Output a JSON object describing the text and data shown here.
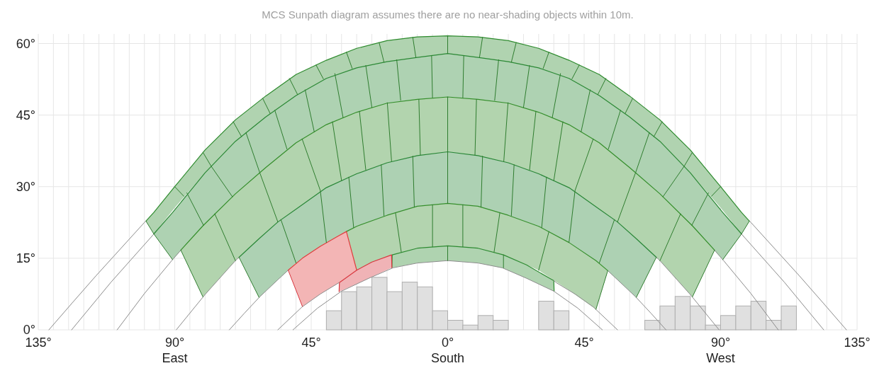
{
  "chart_data": {
    "type": "line",
    "title": "MCS Sunpath diagram assumes there are no near-shading objects within 10m.",
    "xlim": [
      -135,
      135
    ],
    "ylim": [
      0,
      62
    ],
    "xticks": [
      {
        "value": -135,
        "label": "135°"
      },
      {
        "value": -130,
        "label": null
      },
      {
        "value": -125,
        "label": null
      },
      {
        "value": -120,
        "label": null
      },
      {
        "value": -115,
        "label": null
      },
      {
        "value": -110,
        "label": null
      },
      {
        "value": -105,
        "label": null
      },
      {
        "value": -100,
        "label": null
      },
      {
        "value": -95,
        "label": null
      },
      {
        "value": -90,
        "label": "90°\nEast"
      },
      {
        "value": -85,
        "label": null
      },
      {
        "value": -80,
        "label": null
      },
      {
        "value": -75,
        "label": null
      },
      {
        "value": -70,
        "label": null
      },
      {
        "value": -65,
        "label": null
      },
      {
        "value": -60,
        "label": null
      },
      {
        "value": -55,
        "label": null
      },
      {
        "value": -50,
        "label": null
      },
      {
        "value": -45,
        "label": "45°"
      },
      {
        "value": -40,
        "label": null
      },
      {
        "value": -35,
        "label": null
      },
      {
        "value": -30,
        "label": null
      },
      {
        "value": -25,
        "label": null
      },
      {
        "value": -20,
        "label": null
      },
      {
        "value": -15,
        "label": null
      },
      {
        "value": -10,
        "label": null
      },
      {
        "value": -5,
        "label": null
      },
      {
        "value": 0,
        "label": "0°\nSouth"
      },
      {
        "value": 5,
        "label": null
      },
      {
        "value": 10,
        "label": null
      },
      {
        "value": 15,
        "label": null
      },
      {
        "value": 20,
        "label": null
      },
      {
        "value": 25,
        "label": null
      },
      {
        "value": 30,
        "label": null
      },
      {
        "value": 35,
        "label": null
      },
      {
        "value": 40,
        "label": null
      },
      {
        "value": 45,
        "label": "45°"
      },
      {
        "value": 50,
        "label": null
      },
      {
        "value": 55,
        "label": null
      },
      {
        "value": 60,
        "label": null
      },
      {
        "value": 65,
        "label": null
      },
      {
        "value": 70,
        "label": null
      },
      {
        "value": 75,
        "label": null
      },
      {
        "value": 80,
        "label": null
      },
      {
        "value": 85,
        "label": null
      },
      {
        "value": 90,
        "label": "90°\nWest"
      },
      {
        "value": 95,
        "label": null
      },
      {
        "value": 100,
        "label": null
      },
      {
        "value": 105,
        "label": null
      },
      {
        "value": 110,
        "label": null
      },
      {
        "value": 115,
        "label": null
      },
      {
        "value": 120,
        "label": null
      },
      {
        "value": 125,
        "label": null
      },
      {
        "value": 130,
        "label": null
      },
      {
        "value": 135,
        "label": "135°"
      }
    ],
    "yticks": [
      {
        "value": 0,
        "label": "0°"
      },
      {
        "value": 15,
        "label": "15°"
      },
      {
        "value": 30,
        "label": "30°"
      },
      {
        "value": 45,
        "label": "45°"
      },
      {
        "value": 60,
        "label": "60°"
      }
    ],
    "grid": true,
    "series": [
      {
        "type": "histogram",
        "color": "#e0e0e0",
        "bins": [
          -40,
          -35,
          -30,
          -25,
          -20,
          -15,
          -10,
          -5,
          0,
          5,
          10,
          15,
          20,
          25,
          30,
          35,
          40,
          45,
          50,
          55,
          60,
          65,
          70,
          75,
          80,
          85,
          90,
          95,
          100,
          105,
          110,
          115
        ],
        "values": [
          4,
          8,
          9,
          11,
          8,
          10,
          9,
          4,
          2,
          1,
          3,
          2,
          0,
          0,
          6,
          4,
          0,
          0,
          0,
          0,
          0,
          2,
          5,
          7,
          5,
          1,
          3,
          5,
          6,
          2,
          5
        ]
      },
      {
        "color": "#2e8b2e",
        "x": [
          -99.5,
          -96.9,
          -90,
          -80,
          -70,
          -60,
          -50,
          -40,
          -30,
          -20,
          -10,
          0,
          10,
          20,
          30,
          40,
          50,
          60,
          70,
          80,
          90,
          96.9,
          99.5
        ],
        "values": [
          22.8,
          24.6,
          30,
          37.7,
          44,
          49,
          53.5,
          56.5,
          59,
          60.6,
          61.4,
          61.6,
          61.4,
          60.6,
          59,
          56.5,
          53.5,
          49,
          44,
          37.7,
          30,
          24.6,
          22.8
        ],
        "upper": [
          22.8,
          24.6,
          30,
          37.7,
          44,
          49,
          53.5,
          56.5,
          59,
          60.6,
          61.4,
          61.6,
          61.4,
          60.6,
          59,
          56.5,
          53.5,
          49,
          44,
          37.7,
          30,
          24.6,
          22.8
        ],
        "lower": [
          22.8,
          20.1,
          25.6,
          32.9,
          39.5,
          44.6,
          49.1,
          52.7,
          54.9,
          56.2,
          57.1,
          57.9,
          57.1,
          56.2,
          54.9,
          52.7,
          49.1,
          44.6,
          39.5,
          32.9,
          25.6,
          20.1,
          22.8
        ]
      },
      {
        "color": "#2a8834",
        "x": [
          -96.9,
          -90.7,
          -80,
          -70,
          -60,
          -50,
          -40,
          -30,
          -20,
          -10,
          0,
          10,
          20,
          30,
          40,
          50,
          60,
          70,
          80,
          90.7,
          96.9
        ],
        "values": [
          20.1,
          24.6,
          32.9,
          39.5,
          44.6,
          49.1,
          52.7,
          54.9,
          56.2,
          57.1,
          57.9,
          57.1,
          56.2,
          54.9,
          52.7,
          49.1,
          44.6,
          39.5,
          32.9,
          24.6,
          20.1
        ],
        "upper": [
          20.1,
          24.6,
          32.9,
          39.5,
          44.6,
          49.1,
          52.7,
          54.9,
          56.2,
          57.1,
          57.9,
          57.1,
          56.2,
          54.9,
          52.7,
          49.1,
          44.6,
          39.5,
          32.9,
          24.6,
          20.1
        ],
        "lower": [
          20.1,
          14.7,
          22.2,
          28.5,
          34,
          39.2,
          43,
          45.6,
          47.5,
          48.3,
          48.8,
          48.3,
          47.5,
          45.6,
          43,
          39.2,
          34,
          28.5,
          22.2,
          14.7,
          20.1
        ]
      },
      {
        "color": "#348e2a",
        "x": [
          -88,
          -80.7,
          -70,
          -60,
          -50,
          -40,
          -30,
          -20,
          -10,
          0,
          10,
          20,
          30,
          40,
          50,
          60,
          70,
          80.7,
          88
        ],
        "values": [
          16.7,
          21.8,
          28.5,
          34,
          39.2,
          43,
          45.6,
          47.5,
          48.3,
          48.8,
          48.3,
          47.5,
          45.6,
          43,
          39.2,
          34,
          28.5,
          21.8,
          16.7
        ],
        "upper": [
          16.7,
          21.8,
          28.5,
          34,
          39.2,
          43,
          45.6,
          47.5,
          48.3,
          48.8,
          48.3,
          47.5,
          45.6,
          43,
          39.2,
          34,
          28.5,
          21.8,
          16.7
        ],
        "lower": [
          16.7,
          6.9,
          14.5,
          20.4,
          25.3,
          29.8,
          32.7,
          35,
          36.5,
          37.3,
          36.5,
          35,
          32.7,
          29.8,
          25.3,
          20.4,
          14.5,
          6.9,
          16.7
        ]
      },
      {
        "color": "#288636",
        "x": [
          -68.8,
          -62.2,
          -56,
          -50,
          -40,
          -30,
          -20,
          -10,
          0,
          10,
          20,
          30,
          40,
          50,
          56,
          62.2,
          68.8
        ],
        "values": [
          15.2,
          19.1,
          22.6,
          25.3,
          29.8,
          32.7,
          35,
          36.5,
          37.3,
          36.5,
          35,
          32.7,
          29.8,
          25.3,
          22.6,
          19.1,
          15.2
        ],
        "upper": [
          15.2,
          19.1,
          22.6,
          25.3,
          29.8,
          32.7,
          35,
          36.5,
          37.3,
          36.5,
          35,
          32.7,
          29.8,
          25.3,
          22.6,
          19.1,
          15.2
        ],
        "lower": [
          15.2,
          6.8,
          10.5,
          14,
          18.3,
          21.7,
          24,
          25.9,
          26.5,
          25.9,
          24,
          21.7,
          18.3,
          14,
          10.5,
          6.8,
          15.2
        ]
      },
      {
        "color": "#368f2c",
        "x": [
          -33.4,
          -30,
          -20,
          -10,
          0,
          10,
          20,
          30,
          40,
          48.9,
          52.8
        ],
        "values": [
          20.6,
          21.7,
          24,
          25.9,
          26.5,
          25.9,
          24,
          21.7,
          18.3,
          14.5,
          12.4
        ],
        "upper": [
          20.6,
          21.7,
          24,
          25.9,
          26.5,
          25.9,
          24,
          21.7,
          18.3,
          14.5,
          12.4
        ],
        "lower": [
          20.6,
          12.5,
          15.3,
          17.1,
          17.6,
          17.1,
          15.3,
          12.5,
          8.3,
          4.3,
          12.4
        ]
      },
      {
        "color": "#e03c3c",
        "x": [
          -52.6,
          -47.9,
          -42,
          -36,
          -33.4,
          -30
        ],
        "values": [
          12.5,
          15,
          17.5,
          19.7,
          20.6,
          12.5
        ],
        "upper": [
          12.5,
          15,
          17.5,
          19.7,
          20.6,
          12.5
        ],
        "lower": [
          12.5,
          4.9,
          7.5,
          9.8,
          11,
          12.5
        ]
      },
      {
        "color": "#2c8a30",
        "x": [
          -18.4,
          -18.3,
          -10,
          0,
          10,
          18.4,
          26,
          35,
          35.1
        ],
        "values": [
          13,
          15.7,
          17.1,
          17.6,
          17.1,
          15.7,
          13.6,
          10.3,
          8.1
        ],
        "upper": [
          13,
          15.7,
          17.1,
          17.6,
          17.1,
          15.7,
          13.6,
          10.3,
          8.1
        ],
        "lower": [
          13,
          13,
          14,
          14.5,
          14,
          12.9,
          10.8,
          8.1,
          8.1
        ]
      },
      {
        "color": "#d8363e",
        "x": [
          -35.8,
          -35.7,
          -30,
          -25,
          -18.5,
          -18.4
        ],
        "values": [
          8,
          9.9,
          12.5,
          14.2,
          15.7,
          13
        ],
        "upper": [
          8,
          9.9,
          12.5,
          14.2,
          15.7,
          13
        ],
        "lower": [
          8,
          8,
          9.6,
          11.1,
          13,
          13
        ]
      },
      {
        "color": "#8c8c8c",
        "x": [
          -131.5,
          -124,
          -116,
          -110,
          -105,
          -100,
          -99.5
        ],
        "values": [
          0,
          5.5,
          11.3,
          15.5,
          19,
          22.5,
          22.8
        ]
      },
      {
        "color": "#8c8c8c",
        "x": [
          99.5,
          100,
          105,
          110,
          116,
          124,
          131.5
        ],
        "values": [
          22.8,
          22.5,
          19,
          15.5,
          11.3,
          5.5,
          0
        ]
      },
      {
        "color": "#8c8c8c",
        "x": [
          -124,
          -111,
          -97,
          -96.9
        ],
        "values": [
          0,
          10,
          20,
          20.1
        ]
      },
      {
        "color": "#8c8c8c",
        "x": [
          96.9,
          97,
          111,
          124
        ],
        "values": [
          20.1,
          20,
          10,
          0
        ]
      },
      {
        "color": "#8c8c8c",
        "x": [
          -109,
          -100,
          -91,
          -88
        ],
        "values": [
          0,
          7.6,
          14.5,
          16.7
        ]
      },
      {
        "color": "#8c8c8c",
        "x": [
          88,
          91,
          100,
          109
        ],
        "values": [
          16.7,
          14.5,
          7.6,
          0
        ]
      },
      {
        "color": "#8c8c8c",
        "x": [
          -89.5,
          -80,
          -70,
          -68.8
        ],
        "values": [
          0,
          7.4,
          14.5,
          15.2
        ]
      },
      {
        "color": "#8c8c8c",
        "x": [
          68.8,
          70,
          80,
          89.5
        ],
        "values": [
          15.2,
          14.5,
          7.4,
          0
        ]
      },
      {
        "color": "#8c8c8c",
        "x": [
          -72,
          -67,
          -62,
          -56,
          -52.6
        ],
        "values": [
          0,
          3.5,
          6.9,
          10.5,
          12.5
        ]
      },
      {
        "color": "#8c8c8c",
        "x": [
          52.8,
          56,
          62,
          67,
          72
        ],
        "values": [
          12.4,
          10.5,
          6.9,
          3.5,
          0
        ]
      },
      {
        "color": "#8c8c8c",
        "x": [
          -56,
          -48,
          -42,
          -35.8
        ],
        "values": [
          0,
          4.8,
          7.5,
          9.9
        ]
      },
      {
        "color": "#8c8c8c",
        "x": [
          35,
          36,
          42,
          48,
          56
        ],
        "values": [
          10.3,
          9.8,
          7.5,
          4.8,
          0
        ]
      },
      {
        "color": "#8c8c8c",
        "x": [
          -51,
          -43,
          -35,
          -26,
          -18,
          -10,
          0,
          10,
          18,
          26,
          35,
          43,
          51
        ],
        "values": [
          0,
          4.5,
          8.1,
          10.8,
          13,
          14,
          14.5,
          14,
          13,
          10.8,
          8.1,
          4.5,
          0
        ]
      },
      {
        "color": "#2f7d2f",
        "x": [
          -99.5,
          -96.9,
          -90.7
        ],
        "values": [
          22.8,
          20.1,
          14.7
        ]
      },
      {
        "color": "#2f7d2f",
        "x": [
          99.5,
          96.9,
          90.7
        ],
        "values": [
          22.8,
          20.1,
          14.7
        ]
      },
      {
        "color": "#2f7d2f",
        "x": [
          -88,
          -80.7
        ],
        "values": [
          16.7,
          6.9
        ]
      },
      {
        "color": "#2f7d2f",
        "x": [
          88,
          80.7
        ],
        "values": [
          16.7,
          6.9
        ]
      },
      {
        "color": "#2f7d2f",
        "x": [
          -68.8,
          -62.2
        ],
        "values": [
          15.2,
          6.8
        ]
      },
      {
        "color": "#2f7d2f",
        "x": [
          68.8,
          62.2
        ],
        "values": [
          15.2,
          6.8
        ]
      },
      {
        "color": "#d8363e",
        "x": [
          -52.6,
          -47.9
        ],
        "values": [
          12.5,
          4.9
        ]
      },
      {
        "color": "#2f7d2f",
        "x": [
          52.8,
          48.9
        ],
        "values": [
          12.4,
          4.3
        ]
      },
      {
        "color": "#2f7d2f",
        "x": [
          -90,
          -87
        ],
        "values": [
          30,
          28
        ]
      },
      {
        "color": "#2f7d2f",
        "x": [
          -80.7,
          -78,
          -71
        ],
        "values": [
          37.2,
          34.3,
          27.9
        ]
      },
      {
        "color": "#2f7d2f",
        "x": [
          -70.7,
          -68
        ],
        "values": [
          43.6,
          40.5
        ]
      },
      {
        "color": "#2f7d2f",
        "x": [
          -61,
          -58.5
        ],
        "values": [
          48.5,
          45.3
        ]
      },
      {
        "color": "#2f7d2f",
        "x": [
          -52.2,
          -49.5
        ],
        "values": [
          52.7,
          49.3
        ]
      },
      {
        "color": "#2f7d2f",
        "x": [
          -43.4,
          -41
        ],
        "values": [
          55.5,
          52.6
        ]
      },
      {
        "color": "#2f7d2f",
        "x": [
          -33.4,
          -31.5
        ],
        "values": [
          58.2,
          54.8
        ]
      },
      {
        "color": "#2f7d2f",
        "x": [
          -22.6,
          -21
        ],
        "values": [
          60.2,
          56.1
        ]
      },
      {
        "color": "#2f7d2f",
        "x": [
          -11.5,
          -10.5
        ],
        "values": [
          61.3,
          57.1
        ]
      },
      {
        "color": "#2f7d2f",
        "x": [
          0,
          0
        ],
        "values": [
          61.6,
          57.9
        ]
      },
      {
        "color": "#2f7d2f",
        "x": [
          11.5,
          10.5
        ],
        "values": [
          61.3,
          57.1
        ]
      },
      {
        "color": "#2f7d2f",
        "x": [
          22.6,
          21
        ],
        "values": [
          60.2,
          56.1
        ]
      },
      {
        "color": "#2f7d2f",
        "x": [
          33.4,
          31.5
        ],
        "values": [
          58.2,
          54.8
        ]
      },
      {
        "color": "#2f7d2f",
        "x": [
          43.4,
          41
        ],
        "values": [
          55.5,
          52.6
        ]
      },
      {
        "color": "#2f7d2f",
        "x": [
          52.2,
          49.5
        ],
        "values": [
          52.7,
          49.3
        ]
      },
      {
        "color": "#2f7d2f",
        "x": [
          61,
          58.5
        ],
        "values": [
          48.5,
          45.3
        ]
      },
      {
        "color": "#2f7d2f",
        "x": [
          70.7,
          68
        ],
        "values": [
          43.6,
          40.5
        ]
      },
      {
        "color": "#2f7d2f",
        "x": [
          80.7,
          78,
          71
        ],
        "values": [
          37.2,
          34.3,
          27.9
        ]
      },
      {
        "color": "#2f7d2f",
        "x": [
          90,
          87
        ],
        "values": [
          30,
          28
        ]
      },
      {
        "color": "#2f7d2f",
        "x": [
          -86,
          -80.5
        ],
        "values": [
          28.7,
          21.9
        ]
      },
      {
        "color": "#2f7d2f",
        "x": [
          -66.5,
          -62,
          -56
        ],
        "values": [
          41.3,
          33,
          22.6
        ]
      },
      {
        "color": "#2f7d2f",
        "x": [
          -57,
          -53
        ],
        "values": [
          46,
          37.9
        ]
      },
      {
        "color": "#2f7d2f",
        "x": [
          -47,
          -44
        ],
        "values": [
          50.3,
          41.5
        ]
      },
      {
        "color": "#2f7d2f",
        "x": [
          -37.2,
          -34.5
        ],
        "values": [
          53.7,
          44.5
        ]
      },
      {
        "color": "#2f7d2f",
        "x": [
          -27,
          -25
        ],
        "values": [
          55.4,
          46.6
        ]
      },
      {
        "color": "#2f7d2f",
        "x": [
          -16.8,
          -15.5
        ],
        "values": [
          56.6,
          48.1
        ]
      },
      {
        "color": "#2f7d2f",
        "x": [
          -5.3,
          -5
        ],
        "values": [
          57.4,
          48.6
        ]
      },
      {
        "color": "#2f7d2f",
        "x": [
          5.3,
          5
        ],
        "values": [
          57.4,
          48.6
        ]
      },
      {
        "color": "#2f7d2f",
        "x": [
          16.8,
          15.5
        ],
        "values": [
          56.6,
          48.1
        ]
      },
      {
        "color": "#2f7d2f",
        "x": [
          27,
          25
        ],
        "values": [
          55.4,
          46.6
        ]
      },
      {
        "color": "#2f7d2f",
        "x": [
          37.2,
          34.5
        ],
        "values": [
          53.7,
          44.5
        ]
      },
      {
        "color": "#2f7d2f",
        "x": [
          47,
          44
        ],
        "values": [
          50.3,
          41.5
        ]
      },
      {
        "color": "#2f7d2f",
        "x": [
          57,
          53
        ],
        "values": [
          46,
          37.9
        ]
      },
      {
        "color": "#2f7d2f",
        "x": [
          66.5,
          62,
          56
        ],
        "values": [
          41.3,
          33,
          22.6
        ]
      },
      {
        "color": "#2f7d2f",
        "x": [
          86,
          80.5
        ],
        "values": [
          28.7,
          21.9
        ]
      },
      {
        "color": "#2f7d2f",
        "x": [
          -76.8,
          -70
        ],
        "values": [
          24.3,
          14.5
        ]
      },
      {
        "color": "#2f7d2f",
        "x": [
          -48,
          -42,
          -40
        ],
        "values": [
          40,
          29.2,
          18.3
        ]
      },
      {
        "color": "#2f7d2f",
        "x": [
          -38,
          -35
        ],
        "values": [
          43.6,
          31.3
        ]
      },
      {
        "color": "#2f7d2f",
        "x": [
          -29.1,
          -27
        ],
        "values": [
          45.8,
          33.5
        ]
      },
      {
        "color": "#2f7d2f",
        "x": [
          -19.9,
          -18.5
        ],
        "values": [
          47.6,
          35.3
        ]
      },
      {
        "color": "#2f7d2f",
        "x": [
          -9.5,
          -9
        ],
        "values": [
          48.3,
          36.6
        ]
      },
      {
        "color": "#2f7d2f",
        "x": [
          0,
          0,
          0
        ],
        "values": [
          48.8,
          37.3,
          26.5
        ]
      },
      {
        "color": "#2f7d2f",
        "x": [
          9.5,
          9
        ],
        "values": [
          48.3,
          36.6
        ]
      },
      {
        "color": "#2f7d2f",
        "x": [
          19.9,
          18.5
        ],
        "values": [
          47.6,
          35.3
        ]
      },
      {
        "color": "#2f7d2f",
        "x": [
          29.1,
          27
        ],
        "values": [
          45.8,
          33.5
        ]
      },
      {
        "color": "#2f7d2f",
        "x": [
          38,
          35
        ],
        "values": [
          43.6,
          31.3
        ]
      },
      {
        "color": "#2f7d2f",
        "x": [
          48,
          42,
          40
        ],
        "values": [
          40,
          29.2,
          18.3
        ]
      },
      {
        "color": "#2f7d2f",
        "x": [
          76.8,
          70
        ],
        "values": [
          24.3,
          14.5
        ]
      },
      {
        "color": "#2f7d2f",
        "x": [
          -55,
          -50
        ],
        "values": [
          23.1,
          14
        ]
      },
      {
        "color": "#2f7d2f",
        "x": [
          -32.6,
          -31
        ],
        "values": [
          32,
          21.4
        ]
      },
      {
        "color": "#2f7d2f",
        "x": [
          -21.9,
          -21
        ],
        "values": [
          34.6,
          23.9
        ]
      },
      {
        "color": "#2f7d2f",
        "x": [
          -11.5,
          -11
        ],
        "values": [
          36.4,
          25.7
        ]
      },
      {
        "color": "#2f7d2f",
        "x": [
          11.5,
          11
        ],
        "values": [
          36.4,
          25.7
        ]
      },
      {
        "color": "#2f7d2f",
        "x": [
          21.9,
          21
        ],
        "values": [
          34.6,
          23.9
        ]
      },
      {
        "color": "#2f7d2f",
        "x": [
          32.6,
          31
        ],
        "values": [
          32,
          21.4
        ]
      },
      {
        "color": "#2f7d2f",
        "x": [
          55,
          50
        ],
        "values": [
          23.1,
          14
        ]
      },
      {
        "color": "#2f7d2f",
        "x": [
          -17.2,
          -15.3
        ],
        "values": [
          24.5,
          16.3
        ]
      },
      {
        "color": "#2f7d2f",
        "x": [
          -5,
          -5
        ],
        "values": [
          26.2,
          17.4
        ]
      },
      {
        "color": "#2f7d2f",
        "x": [
          5,
          5
        ],
        "values": [
          26.2,
          17.4
        ]
      },
      {
        "color": "#2f7d2f",
        "x": [
          17.2,
          15.3
        ],
        "values": [
          24.5,
          16.3
        ]
      },
      {
        "color": "#2f7d2f",
        "x": [
          33.4,
          30
        ],
        "values": [
          20.6,
          12.5
        ]
      },
      {
        "color": "#2f7d2f",
        "x": [
          0,
          0
        ],
        "values": [
          17.6,
          14.5
        ]
      },
      {
        "color": "#2f7d2f",
        "x": [
          18.4,
          18.4
        ],
        "values": [
          15.7,
          13
        ]
      }
    ]
  }
}
